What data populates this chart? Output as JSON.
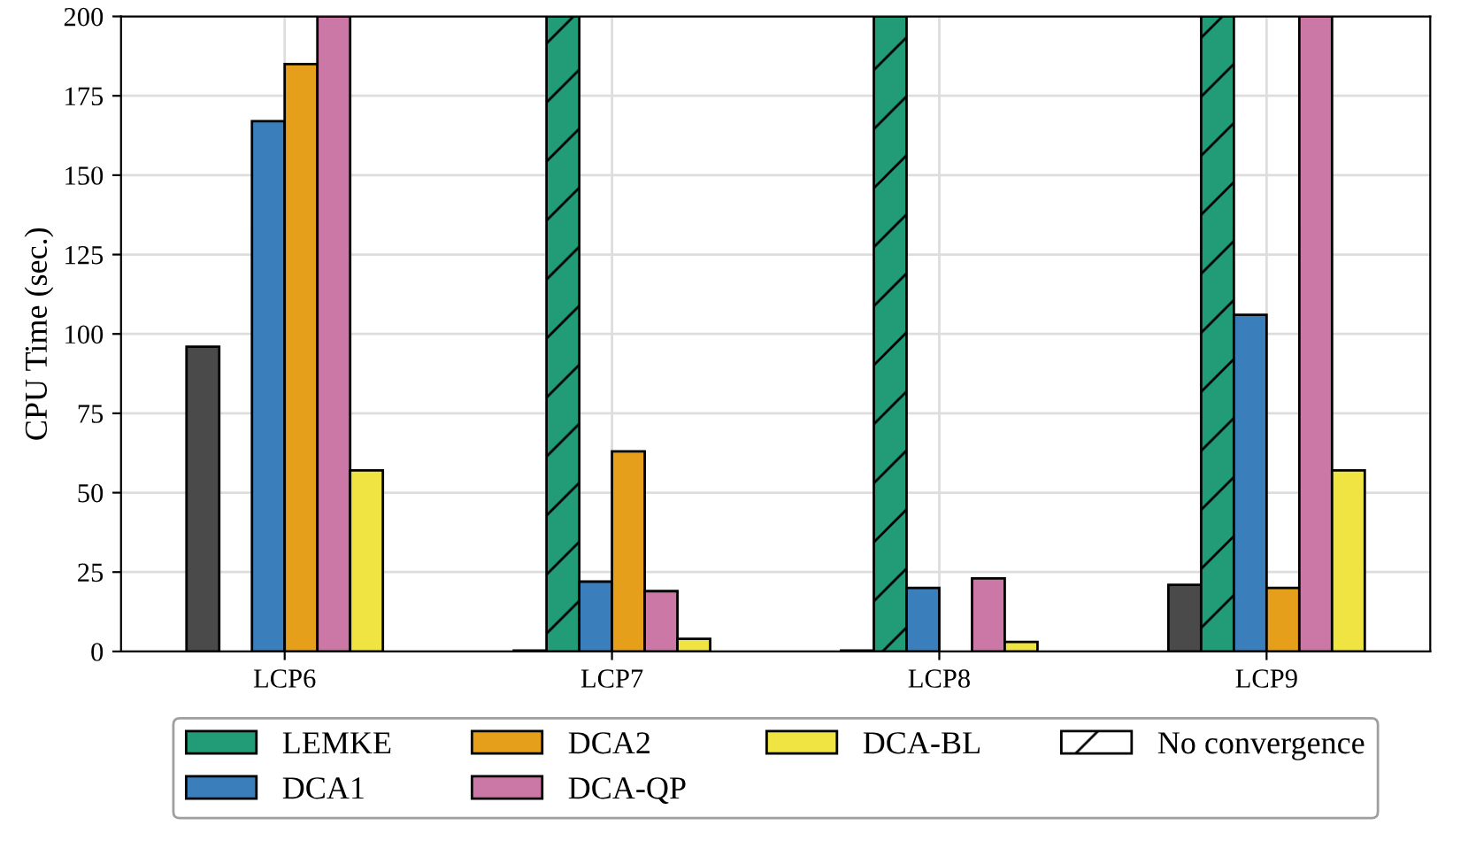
{
  "chart_data": {
    "type": "bar",
    "ylabel": "CPU Time (sec.)",
    "categories": [
      "LCP6",
      "LCP7",
      "LCP8",
      "LCP9"
    ],
    "series": [
      {
        "color": "#4a4a4a",
        "values": [
          96,
          0.3,
          0.3,
          21
        ]
      },
      {
        "name": "LEMKE",
        "color": "#229c77",
        "values": [
          null,
          200,
          200,
          200
        ]
      },
      {
        "name": "DCA1",
        "color": "#3a7ebc",
        "values": [
          167,
          22,
          20,
          106
        ]
      },
      {
        "name": "DCA2",
        "color": "#e69f1a",
        "values": [
          185,
          63,
          null,
          20
        ]
      },
      {
        "name": "DCA-QP",
        "color": "#cc78a7",
        "values": [
          200,
          19,
          23,
          200
        ]
      },
      {
        "name": "DCA-BL",
        "color": "#f0e442",
        "values": [
          57,
          4,
          3,
          57
        ]
      }
    ],
    "annotations": [
      "No convergence"
    ],
    "ylim": [
      0,
      200
    ],
    "yticks": [
      0,
      25,
      50,
      75,
      100,
      125,
      150,
      175,
      200
    ],
    "grid": true,
    "legend": "bottom"
  }
}
